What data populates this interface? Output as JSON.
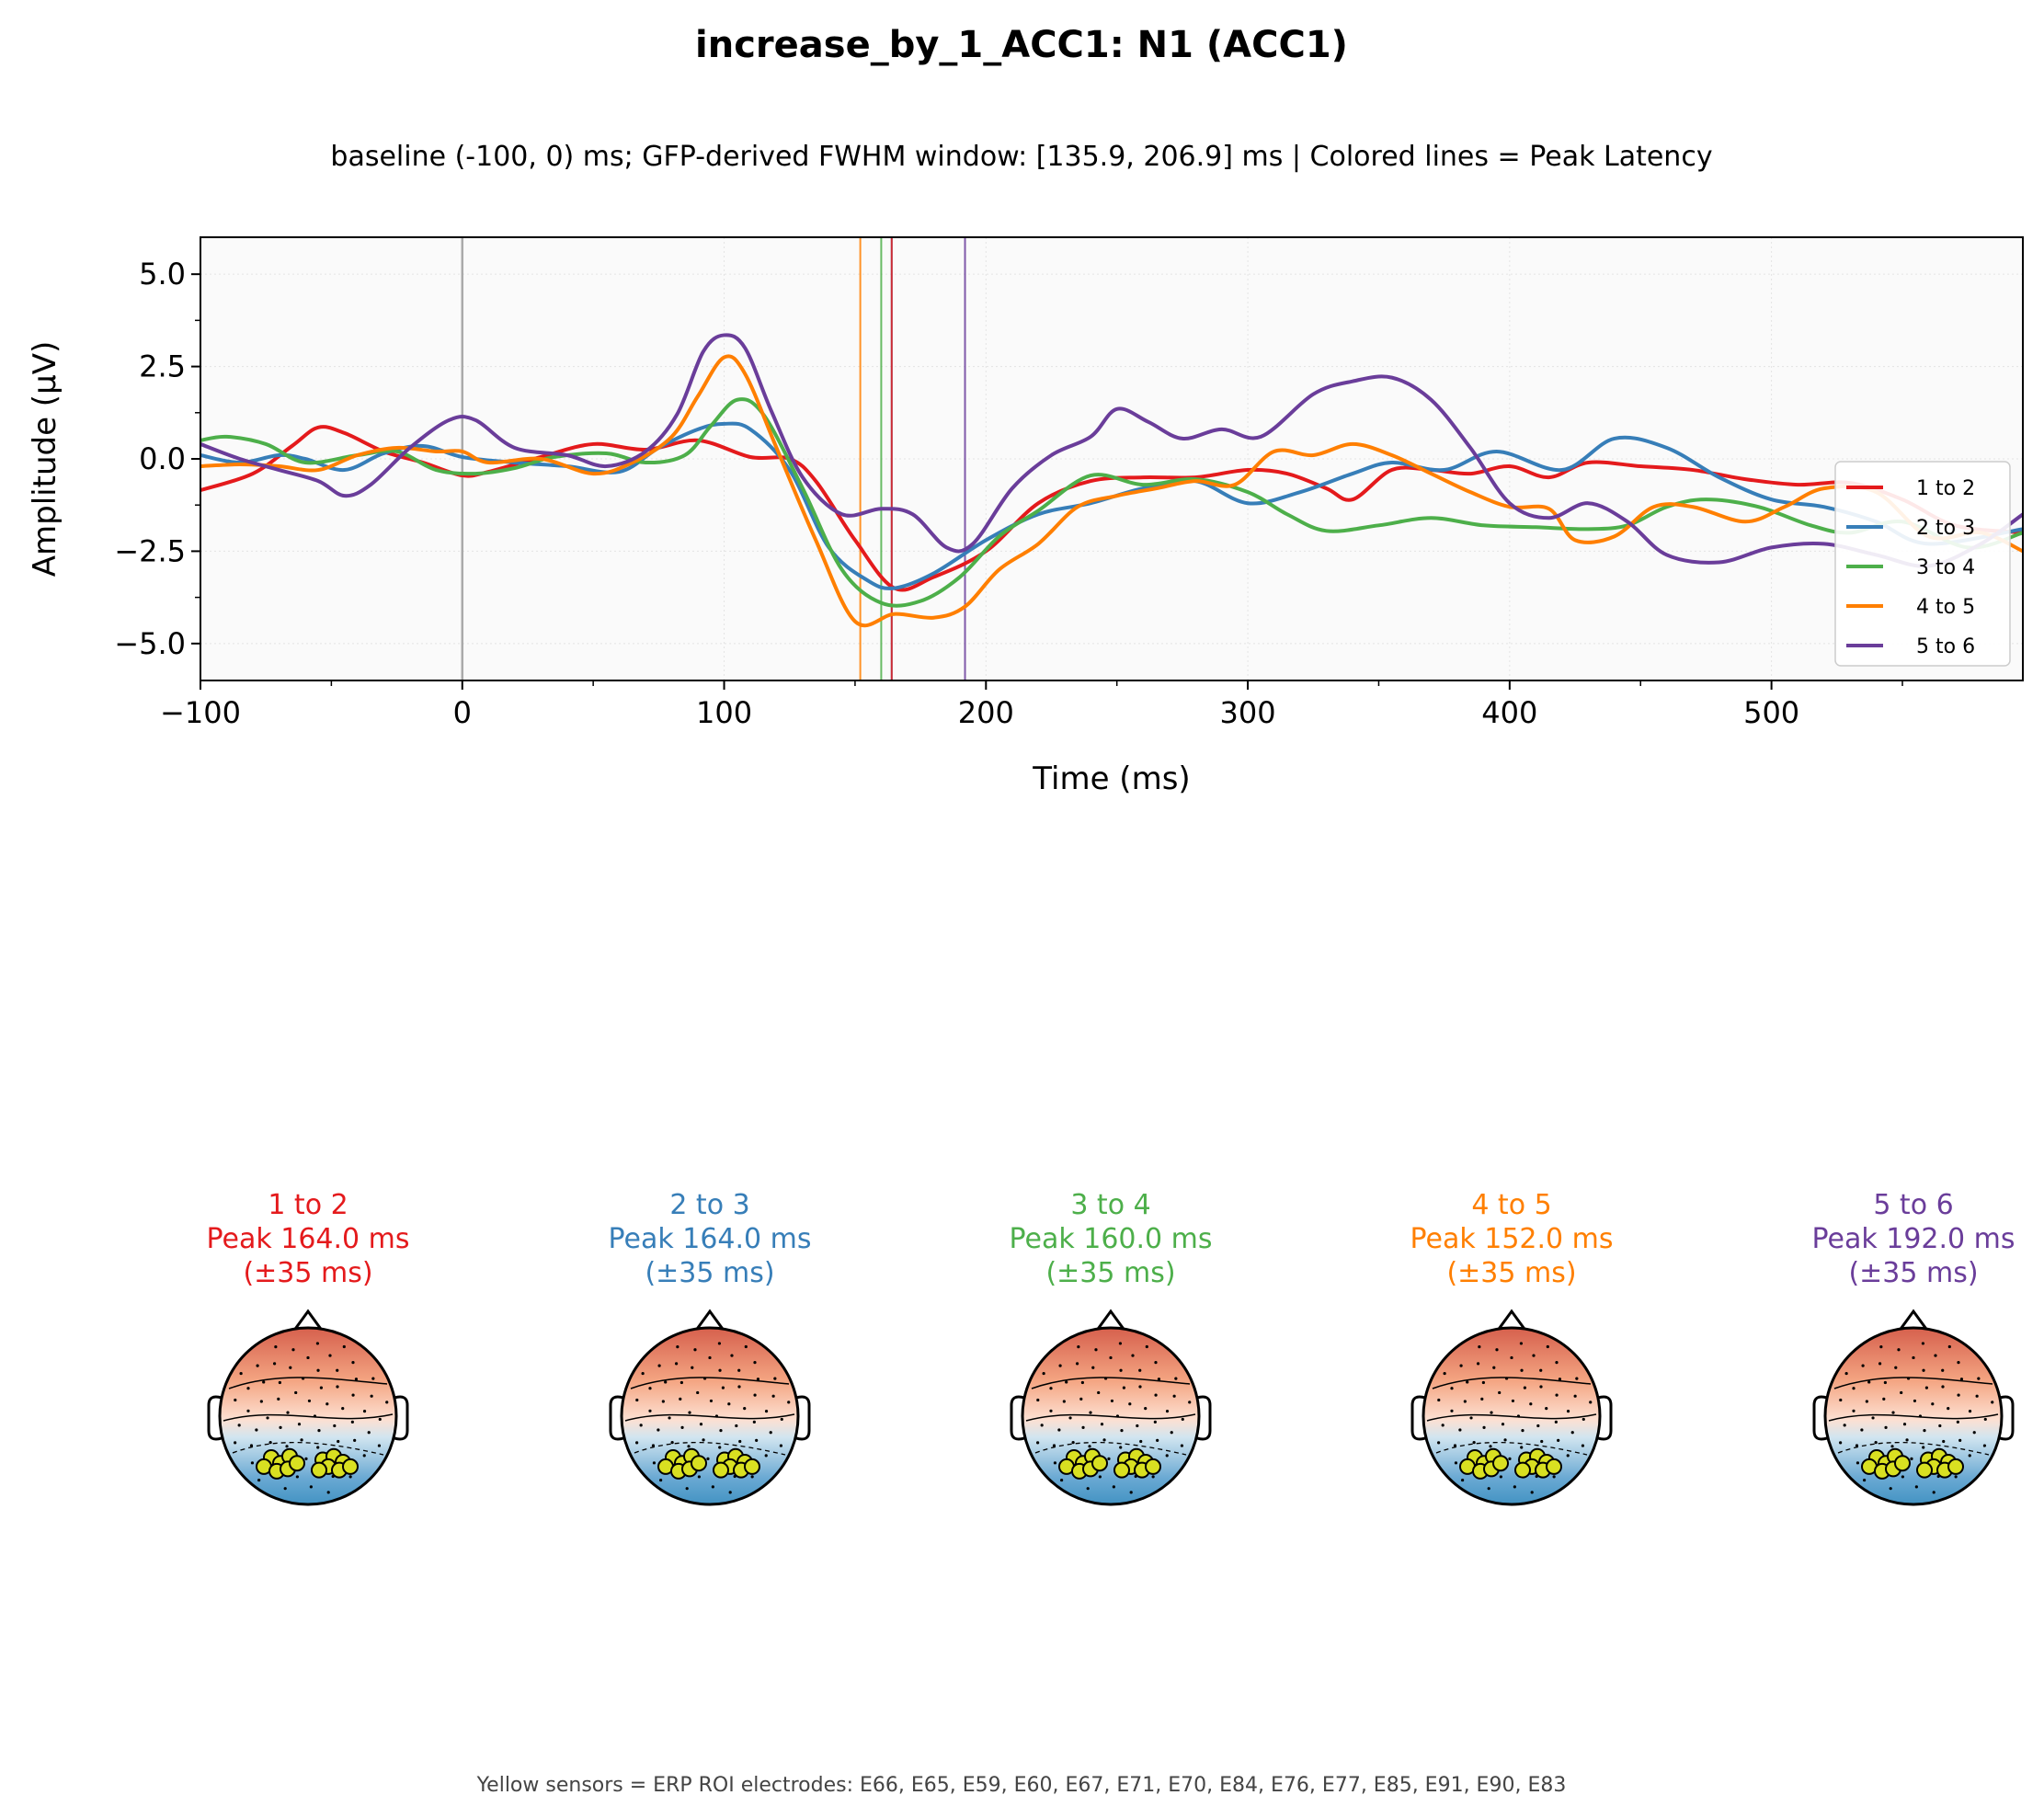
{
  "title": "increase_by_1_ACC1: N1 (ACC1)",
  "subtitle": "baseline (-100, 0) ms; GFP-derived FWHM window: [135.9, 206.9] ms | Colored lines = Peak Latency",
  "footnote": "Yellow sensors = ERP ROI electrodes: E66, E65, E59, E60, E67, E71, E70, E84, E76, E77, E85, E91, E90, E83",
  "chart_data": {
    "type": "line",
    "xlabel": "Time (ms)",
    "ylabel": "Amplitude (µV)",
    "xlim": [
      -100,
      596
    ],
    "ylim": [
      -6,
      6
    ],
    "xticks": [
      -100,
      0,
      100,
      200,
      300,
      400,
      500
    ],
    "xtick_labels": [
      "−100",
      "0",
      "100",
      "200",
      "300",
      "400",
      "500"
    ],
    "yticks": [
      5.0,
      2.5,
      0.0,
      -2.5,
      -5.0
    ],
    "ytick_labels": [
      "5.0",
      "2.5",
      "0.0",
      "−2.5",
      "−5.0"
    ],
    "grid": true,
    "legend_position": "center-right",
    "zero_line_color": "#aaaaaa",
    "series": [
      {
        "name": "1 to 2",
        "color": "#e41a1c",
        "peak_latency": 164.0,
        "points": [
          [
            -100,
            -0.85
          ],
          [
            -80,
            -0.4
          ],
          [
            -65,
            0.35
          ],
          [
            -55,
            0.85
          ],
          [
            -45,
            0.7
          ],
          [
            -30,
            0.2
          ],
          [
            -15,
            -0.1
          ],
          [
            0,
            -0.45
          ],
          [
            10,
            -0.35
          ],
          [
            30,
            0.05
          ],
          [
            50,
            0.4
          ],
          [
            70,
            0.25
          ],
          [
            90,
            0.5
          ],
          [
            110,
            0.05
          ],
          [
            125,
            0.0
          ],
          [
            135,
            -0.6
          ],
          [
            150,
            -2.2
          ],
          [
            165,
            -3.5
          ],
          [
            180,
            -3.2
          ],
          [
            200,
            -2.5
          ],
          [
            220,
            -1.2
          ],
          [
            240,
            -0.6
          ],
          [
            260,
            -0.5
          ],
          [
            280,
            -0.5
          ],
          [
            300,
            -0.3
          ],
          [
            315,
            -0.4
          ],
          [
            330,
            -0.8
          ],
          [
            340,
            -1.1
          ],
          [
            355,
            -0.3
          ],
          [
            370,
            -0.3
          ],
          [
            385,
            -0.4
          ],
          [
            400,
            -0.2
          ],
          [
            415,
            -0.5
          ],
          [
            430,
            -0.1
          ],
          [
            450,
            -0.2
          ],
          [
            470,
            -0.3
          ],
          [
            490,
            -0.55
          ],
          [
            510,
            -0.7
          ],
          [
            530,
            -0.65
          ],
          [
            550,
            -1.1
          ],
          [
            570,
            -1.8
          ],
          [
            596,
            -2.0
          ]
        ]
      },
      {
        "name": "2 to 3",
        "color": "#377eb8",
        "peak_latency": 164.0,
        "points": [
          [
            -100,
            0.1
          ],
          [
            -85,
            -0.1
          ],
          [
            -70,
            0.1
          ],
          [
            -60,
            0.0
          ],
          [
            -45,
            -0.3
          ],
          [
            -30,
            0.15
          ],
          [
            -15,
            0.35
          ],
          [
            0,
            0.05
          ],
          [
            20,
            -0.1
          ],
          [
            40,
            -0.2
          ],
          [
            60,
            -0.35
          ],
          [
            75,
            0.3
          ],
          [
            90,
            0.8
          ],
          [
            100,
            0.95
          ],
          [
            110,
            0.8
          ],
          [
            125,
            -0.3
          ],
          [
            140,
            -2.4
          ],
          [
            155,
            -3.3
          ],
          [
            165,
            -3.5
          ],
          [
            180,
            -3.1
          ],
          [
            200,
            -2.2
          ],
          [
            220,
            -1.5
          ],
          [
            240,
            -1.2
          ],
          [
            260,
            -0.8
          ],
          [
            280,
            -0.6
          ],
          [
            300,
            -1.2
          ],
          [
            320,
            -0.9
          ],
          [
            340,
            -0.4
          ],
          [
            355,
            -0.1
          ],
          [
            375,
            -0.3
          ],
          [
            395,
            0.2
          ],
          [
            420,
            -0.3
          ],
          [
            440,
            0.55
          ],
          [
            460,
            0.3
          ],
          [
            480,
            -0.5
          ],
          [
            500,
            -1.1
          ],
          [
            520,
            -1.3
          ],
          [
            540,
            -1.7
          ],
          [
            560,
            -2.3
          ],
          [
            596,
            -1.9
          ]
        ]
      },
      {
        "name": "3 to 4",
        "color": "#4daf4a",
        "peak_latency": 160.0,
        "points": [
          [
            -100,
            0.5
          ],
          [
            -90,
            0.6
          ],
          [
            -75,
            0.4
          ],
          [
            -60,
            -0.1
          ],
          [
            -40,
            0.1
          ],
          [
            -25,
            0.2
          ],
          [
            -10,
            -0.3
          ],
          [
            5,
            -0.4
          ],
          [
            20,
            -0.25
          ],
          [
            35,
            0.05
          ],
          [
            55,
            0.15
          ],
          [
            70,
            -0.1
          ],
          [
            85,
            0.1
          ],
          [
            95,
            0.9
          ],
          [
            105,
            1.6
          ],
          [
            115,
            1.2
          ],
          [
            130,
            -0.8
          ],
          [
            145,
            -3.0
          ],
          [
            160,
            -3.9
          ],
          [
            175,
            -3.85
          ],
          [
            190,
            -3.2
          ],
          [
            205,
            -2.1
          ],
          [
            220,
            -1.4
          ],
          [
            240,
            -0.45
          ],
          [
            260,
            -0.7
          ],
          [
            280,
            -0.55
          ],
          [
            300,
            -0.9
          ],
          [
            315,
            -1.5
          ],
          [
            330,
            -1.95
          ],
          [
            350,
            -1.8
          ],
          [
            370,
            -1.6
          ],
          [
            390,
            -1.8
          ],
          [
            410,
            -1.85
          ],
          [
            430,
            -1.9
          ],
          [
            445,
            -1.8
          ],
          [
            460,
            -1.3
          ],
          [
            475,
            -1.1
          ],
          [
            495,
            -1.3
          ],
          [
            515,
            -1.8
          ],
          [
            530,
            -2.0
          ],
          [
            550,
            -1.7
          ],
          [
            575,
            -2.4
          ],
          [
            596,
            -2.0
          ]
        ]
      },
      {
        "name": "4 to 5",
        "color": "#ff7f00",
        "peak_latency": 152.0,
        "points": [
          [
            -100,
            -0.2
          ],
          [
            -85,
            -0.15
          ],
          [
            -70,
            -0.2
          ],
          [
            -55,
            -0.3
          ],
          [
            -40,
            0.1
          ],
          [
            -25,
            0.3
          ],
          [
            -10,
            0.2
          ],
          [
            0,
            0.2
          ],
          [
            10,
            -0.1
          ],
          [
            30,
            0.0
          ],
          [
            50,
            -0.4
          ],
          [
            65,
            -0.1
          ],
          [
            80,
            0.6
          ],
          [
            90,
            1.7
          ],
          [
            100,
            2.75
          ],
          [
            108,
            2.3
          ],
          [
            120,
            0.3
          ],
          [
            135,
            -2.2
          ],
          [
            150,
            -4.4
          ],
          [
            165,
            -4.2
          ],
          [
            180,
            -4.3
          ],
          [
            192,
            -4.0
          ],
          [
            205,
            -3.0
          ],
          [
            220,
            -2.3
          ],
          [
            235,
            -1.3
          ],
          [
            250,
            -1.0
          ],
          [
            265,
            -0.8
          ],
          [
            280,
            -0.6
          ],
          [
            295,
            -0.7
          ],
          [
            310,
            0.2
          ],
          [
            325,
            0.1
          ],
          [
            340,
            0.4
          ],
          [
            355,
            0.1
          ],
          [
            370,
            -0.4
          ],
          [
            385,
            -0.9
          ],
          [
            400,
            -1.3
          ],
          [
            415,
            -1.35
          ],
          [
            425,
            -2.2
          ],
          [
            440,
            -2.1
          ],
          [
            455,
            -1.3
          ],
          [
            470,
            -1.3
          ],
          [
            490,
            -1.7
          ],
          [
            505,
            -1.3
          ],
          [
            520,
            -0.8
          ],
          [
            540,
            -0.9
          ],
          [
            560,
            -2.1
          ],
          [
            580,
            -2.0
          ],
          [
            596,
            -2.5
          ]
        ]
      },
      {
        "name": "5 to 6",
        "color": "#6a3d9a",
        "peak_latency": 192.0,
        "points": [
          [
            -100,
            0.4
          ],
          [
            -85,
            0.0
          ],
          [
            -70,
            -0.3
          ],
          [
            -55,
            -0.6
          ],
          [
            -45,
            -1.0
          ],
          [
            -35,
            -0.7
          ],
          [
            -20,
            0.3
          ],
          [
            -5,
            1.05
          ],
          [
            5,
            1.05
          ],
          [
            20,
            0.3
          ],
          [
            40,
            0.1
          ],
          [
            55,
            -0.2
          ],
          [
            70,
            0.2
          ],
          [
            82,
            1.2
          ],
          [
            92,
            2.9
          ],
          [
            100,
            3.35
          ],
          [
            108,
            3.0
          ],
          [
            118,
            1.3
          ],
          [
            130,
            -0.5
          ],
          [
            145,
            -1.5
          ],
          [
            160,
            -1.35
          ],
          [
            172,
            -1.5
          ],
          [
            185,
            -2.4
          ],
          [
            195,
            -2.3
          ],
          [
            210,
            -0.8
          ],
          [
            225,
            0.1
          ],
          [
            240,
            0.6
          ],
          [
            250,
            1.35
          ],
          [
            262,
            1.0
          ],
          [
            275,
            0.55
          ],
          [
            290,
            0.8
          ],
          [
            305,
            0.6
          ],
          [
            325,
            1.75
          ],
          [
            340,
            2.1
          ],
          [
            355,
            2.2
          ],
          [
            370,
            1.6
          ],
          [
            385,
            0.3
          ],
          [
            400,
            -1.2
          ],
          [
            415,
            -1.6
          ],
          [
            430,
            -1.2
          ],
          [
            445,
            -1.7
          ],
          [
            460,
            -2.6
          ],
          [
            480,
            -2.8
          ],
          [
            500,
            -2.4
          ],
          [
            520,
            -2.3
          ],
          [
            540,
            -2.6
          ],
          [
            560,
            -2.9
          ],
          [
            580,
            -2.3
          ],
          [
            596,
            -1.5
          ]
        ]
      }
    ],
    "peak_lines": [
      {
        "x": 152.0,
        "color": "#ff7f00"
      },
      {
        "x": 160.0,
        "color": "#4daf4a"
      },
      {
        "x": 164.0,
        "color": "#377eb8"
      },
      {
        "x": 164.0,
        "color": "#e41a1c"
      },
      {
        "x": 192.0,
        "color": "#6a3d9a"
      }
    ]
  },
  "topomaps": [
    {
      "label1": "1 to 2",
      "label2": "Peak 164.0 ms",
      "label3": "(±35 ms)",
      "color": "#e41a1c"
    },
    {
      "label1": "2 to 3",
      "label2": "Peak 164.0 ms",
      "label3": "(±35 ms)",
      "color": "#377eb8"
    },
    {
      "label1": "3 to 4",
      "label2": "Peak 160.0 ms",
      "label3": "(±35 ms)",
      "color": "#4daf4a"
    },
    {
      "label1": "4 to 5",
      "label2": "Peak 152.0 ms",
      "label3": "(±35 ms)",
      "color": "#ff7f00"
    },
    {
      "label1": "5 to 6",
      "label2": "Peak 192.0 ms",
      "label3": "(±35 ms)",
      "color": "#6a3d9a"
    }
  ]
}
